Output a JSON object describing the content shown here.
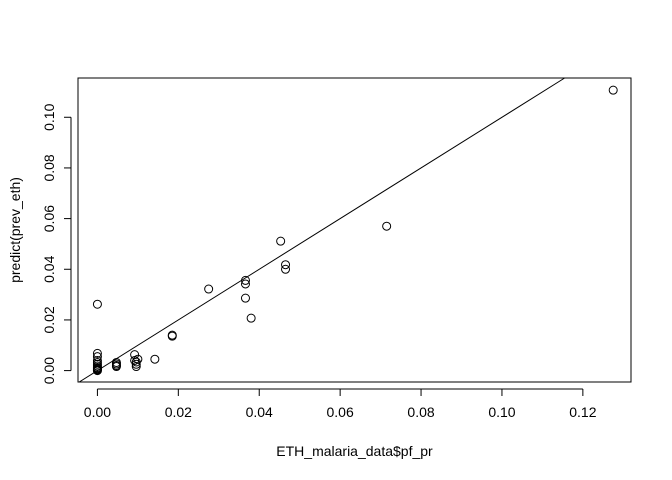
{
  "chart_data": {
    "type": "scatter",
    "title": "",
    "xlabel": "ETH_malaria_data$pf_pr",
    "ylabel": "predict(prev_eth)",
    "xlim": [
      -0.0048,
      0.1319
    ],
    "ylim": [
      -0.0045,
      0.1155
    ],
    "x_ticks": [
      0.0,
      0.02,
      0.04,
      0.06,
      0.08,
      0.1,
      0.12
    ],
    "x_tick_labels": [
      "0.00",
      "0.02",
      "0.04",
      "0.06",
      "0.08",
      "0.10",
      "0.12"
    ],
    "y_ticks": [
      0.0,
      0.02,
      0.04,
      0.06,
      0.08,
      0.1
    ],
    "y_tick_labels": [
      "0.00",
      "0.02",
      "0.04",
      "0.06",
      "0.08",
      "0.10"
    ],
    "grid": false,
    "reference_line": {
      "intercept": 0,
      "slope": 1
    },
    "points": [
      [
        0.0,
        0.0262
      ],
      [
        0.0,
        0.0068
      ],
      [
        0.0,
        0.0055
      ],
      [
        0.0,
        0.004
      ],
      [
        0.0,
        0.0032
      ],
      [
        0.0,
        0.0025
      ],
      [
        0.0,
        0.0018
      ],
      [
        0.0,
        0.0012
      ],
      [
        0.0,
        0.0008
      ],
      [
        0.0,
        0.0005
      ],
      [
        0.0,
        0.0002
      ],
      [
        0.0,
        0.0
      ],
      [
        0.0047,
        0.0032
      ],
      [
        0.0047,
        0.0026
      ],
      [
        0.0047,
        0.002
      ],
      [
        0.0047,
        0.0016
      ],
      [
        0.0092,
        0.0063
      ],
      [
        0.0092,
        0.004
      ],
      [
        0.0096,
        0.0034
      ],
      [
        0.0096,
        0.0025
      ],
      [
        0.0096,
        0.0016
      ],
      [
        0.01,
        0.0045
      ],
      [
        0.0142,
        0.0045
      ],
      [
        0.0185,
        0.014
      ],
      [
        0.0185,
        0.0136
      ],
      [
        0.0275,
        0.0322
      ],
      [
        0.0366,
        0.0356
      ],
      [
        0.0366,
        0.0342
      ],
      [
        0.0366,
        0.0286
      ],
      [
        0.038,
        0.0207
      ],
      [
        0.0453,
        0.0511
      ],
      [
        0.0465,
        0.0418
      ],
      [
        0.0465,
        0.04
      ],
      [
        0.0715,
        0.057
      ],
      [
        0.1275,
        0.1107
      ]
    ]
  }
}
